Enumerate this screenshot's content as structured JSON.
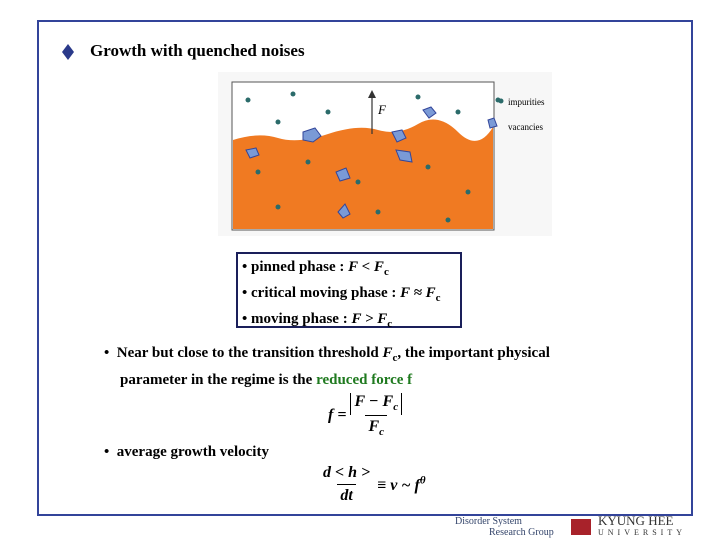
{
  "title": "Growth with quenched noises",
  "figure": {
    "force_label": "F",
    "legend": [
      "impurities",
      "vacancies"
    ]
  },
  "phases": [
    {
      "label": "pinned phase :",
      "relation": "F < F",
      "sub": "c"
    },
    {
      "label": "critical moving phase :",
      "relation": "F ≈ F",
      "sub": "c"
    },
    {
      "label": "moving phase :",
      "relation": "F > F",
      "sub": "c"
    }
  ],
  "paragraph": {
    "before": "Near but close to the transition threshold ",
    "symbol": "F",
    "sub": "c",
    "middle": ", the important physical parameter in the regime is the ",
    "highlight": "reduced force f"
  },
  "formula1": {
    "lhs": "f =",
    "numerator": "F − F",
    "numerator_sub": "c",
    "denominator": "F",
    "denominator_sub": "c"
  },
  "bullet2": "average growth velocity",
  "formula2": {
    "numerator": "d < h >",
    "denominator": "dt",
    "rhs": "≡ v ~ f",
    "sup": "θ"
  },
  "footer": {
    "group_line1": "Disorder System",
    "group_line2": "Research Group",
    "university_line1": "KYUNG HEE",
    "university_line2": "UNIVERSITY"
  }
}
